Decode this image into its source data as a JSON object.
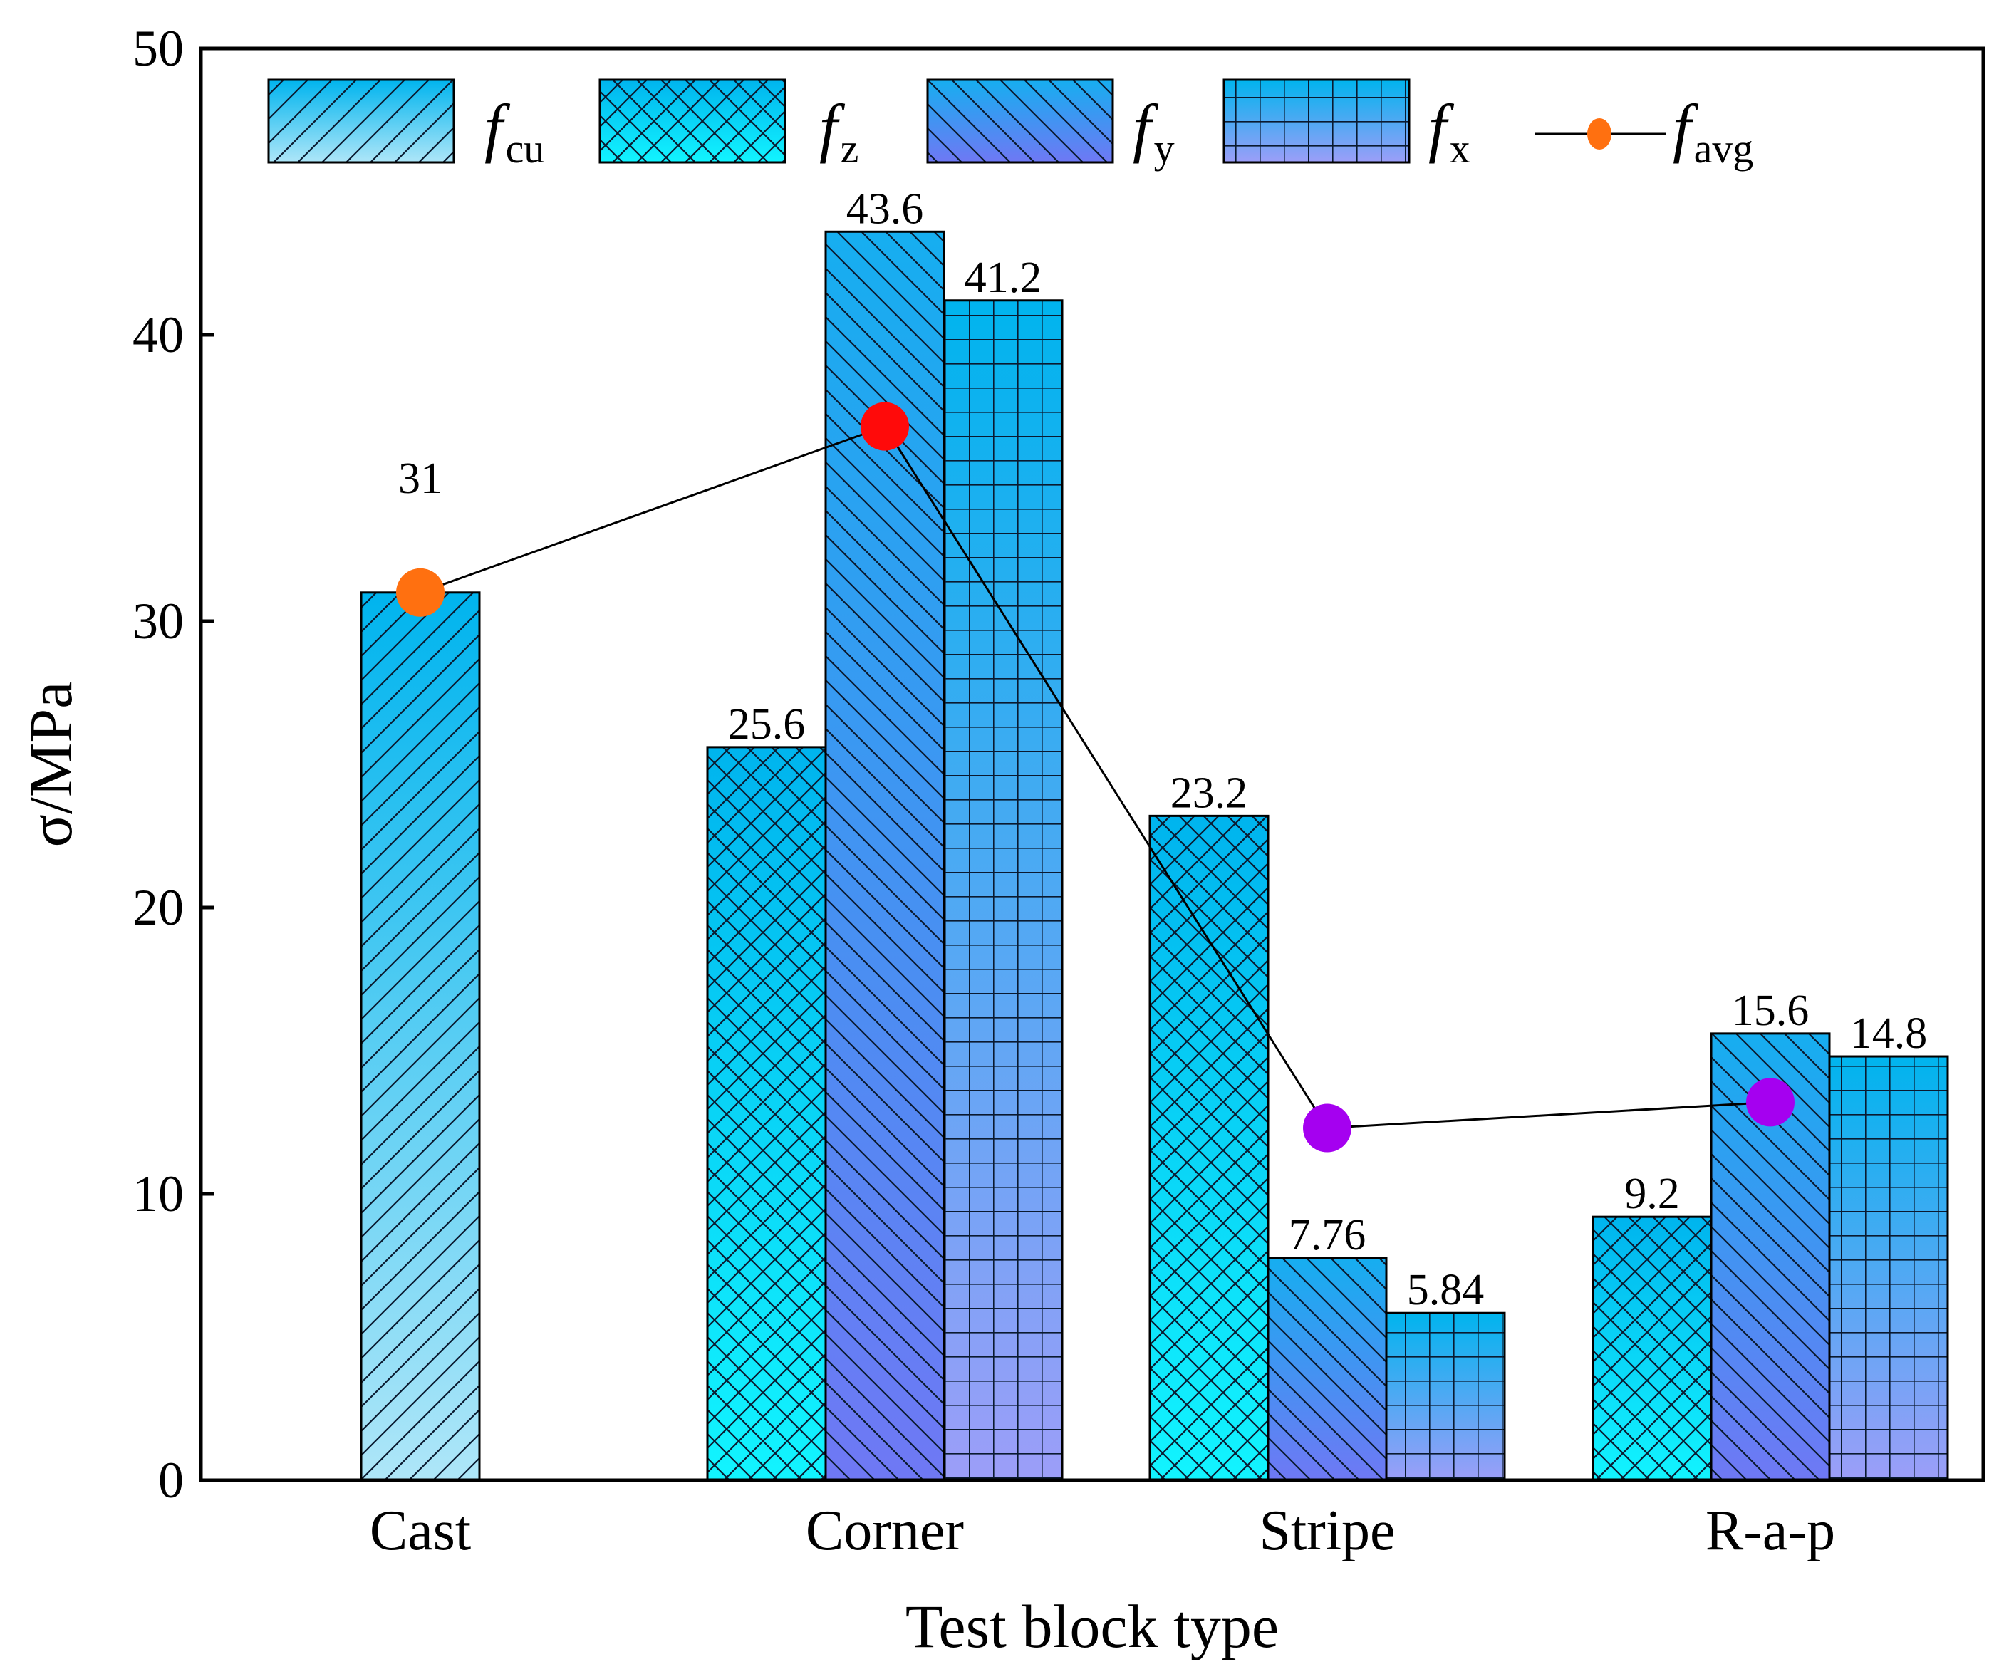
{
  "chart_data": {
    "type": "bar",
    "categories": [
      "Cast",
      "Corner",
      "Stripe",
      "R-a-p"
    ],
    "series": [
      {
        "key": "fcu",
        "name": "f",
        "subscript": "cu",
        "pattern": "diag-up",
        "colors": [
          "#00b4ee",
          "#aee6f8"
        ],
        "values": [
          31,
          null,
          null,
          null
        ],
        "labels": [
          "31",
          "",
          "",
          ""
        ]
      },
      {
        "key": "fz",
        "name": "f",
        "subscript": "z",
        "pattern": "crosshatch",
        "colors": [
          "#00b4ee",
          "#12f4ff"
        ],
        "values": [
          null,
          25.6,
          23.2,
          9.2
        ],
        "labels": [
          "",
          "25.6",
          "23.2",
          "9.2"
        ]
      },
      {
        "key": "fy",
        "name": "f",
        "subscript": "y",
        "pattern": "diag-down",
        "colors": [
          "#16aef0",
          "#6f78f4"
        ],
        "values": [
          null,
          43.6,
          7.76,
          15.6
        ],
        "labels": [
          "",
          "43.6",
          "7.76",
          "15.6"
        ]
      },
      {
        "key": "fx",
        "name": "f",
        "subscript": "x",
        "pattern": "grid",
        "colors": [
          "#00b4ee",
          "#9c9ef8"
        ],
        "values": [
          null,
          41.2,
          5.84,
          14.8
        ],
        "labels": [
          "",
          "41.2",
          "5.84",
          "14.8"
        ]
      }
    ],
    "line_series": {
      "key": "favg",
      "name": "f",
      "subscript": "avg",
      "legend_color": "#ff7010",
      "points": [
        {
          "category": "Cast",
          "value": 31,
          "color": "#ff7010"
        },
        {
          "category": "Corner",
          "value": 36.8,
          "color": "#ff0a0a"
        },
        {
          "category": "Stripe",
          "value": 12.3,
          "color": "#a500f0"
        },
        {
          "category": "R-a-p",
          "value": 13.2,
          "color": "#a500f0"
        }
      ]
    },
    "xlabel": "Test block type",
    "ylabel": "σ/MPa",
    "ylim": [
      0,
      50
    ],
    "yticks": [
      "0",
      "10",
      "20",
      "30",
      "40",
      "50"
    ],
    "grid": false,
    "legend_position": "top"
  }
}
